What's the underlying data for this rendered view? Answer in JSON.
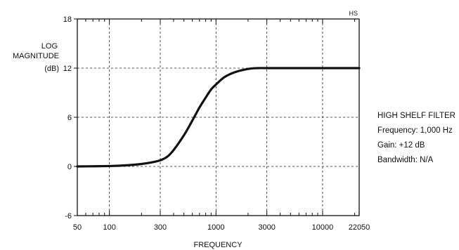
{
  "chart_data": {
    "type": "line",
    "corner_label": "HS",
    "ylabel_lines": [
      "LOG",
      "MAGNITUDE",
      "(dB)"
    ],
    "xlabel": "FREQUENCY",
    "x_scale": "log",
    "xlim": [
      50,
      22050
    ],
    "ylim": [
      -6,
      18
    ],
    "x_ticks": [
      {
        "value": 50,
        "label": "50"
      },
      {
        "value": 100,
        "label": "100"
      },
      {
        "value": 300,
        "label": "300"
      },
      {
        "value": 1000,
        "label": "1000"
      },
      {
        "value": 3000,
        "label": "3000"
      },
      {
        "value": 10000,
        "label": "10000"
      },
      {
        "value": 22050,
        "label": "22050"
      }
    ],
    "x_grid": [
      100,
      300,
      1000,
      3000,
      10000
    ],
    "y_ticks": [
      {
        "value": 18,
        "label": "18"
      },
      {
        "value": 12,
        "label": "12"
      },
      {
        "value": 6,
        "label": "6"
      },
      {
        "value": 0,
        "label": "0"
      },
      {
        "value": -6,
        "label": "-6"
      }
    ],
    "y_grid": [
      12,
      6,
      0
    ],
    "minor_ticks": [
      60,
      70,
      80,
      90,
      200,
      400,
      500,
      600,
      700,
      800,
      900,
      2000,
      4000,
      5000,
      6000,
      7000,
      8000,
      9000,
      20000
    ],
    "series": [
      {
        "x": [
          50,
          100,
          150,
          200,
          250,
          300,
          350,
          400,
          500,
          600,
          700,
          800,
          900,
          1000,
          1200,
          1500,
          2000,
          2500,
          3000,
          5000,
          10000,
          22050
        ],
        "values": [
          0.0,
          0.05,
          0.15,
          0.3,
          0.5,
          0.75,
          1.2,
          2.0,
          3.8,
          5.6,
          7.2,
          8.4,
          9.4,
          10.0,
          10.9,
          11.5,
          11.9,
          12.0,
          12.0,
          12.0,
          12.0,
          12.0
        ]
      }
    ],
    "grid": true
  },
  "info": {
    "lines": [
      "HIGH SHELF FILTER",
      "Frequency: 1,000 Hz",
      "Gain: +12 dB",
      "Bandwidth: N/A"
    ]
  }
}
